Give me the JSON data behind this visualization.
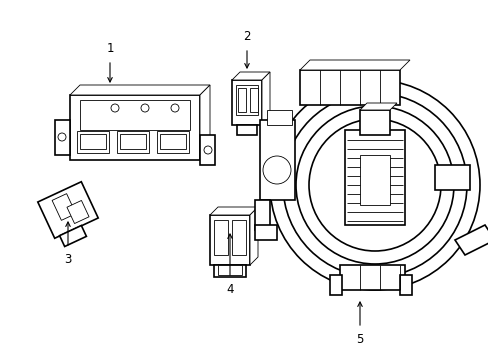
{
  "background_color": "#ffffff",
  "line_color": "#000000",
  "lw_main": 1.2,
  "lw_thin": 0.6,
  "lw_label": 0.7,
  "label_fontsize": 8.5,
  "labels": [
    "1",
    "2",
    "3",
    "4",
    "5"
  ],
  "figsize": [
    4.89,
    3.6
  ],
  "dpi": 100,
  "xlim": [
    0,
    489
  ],
  "ylim": [
    0,
    360
  ]
}
